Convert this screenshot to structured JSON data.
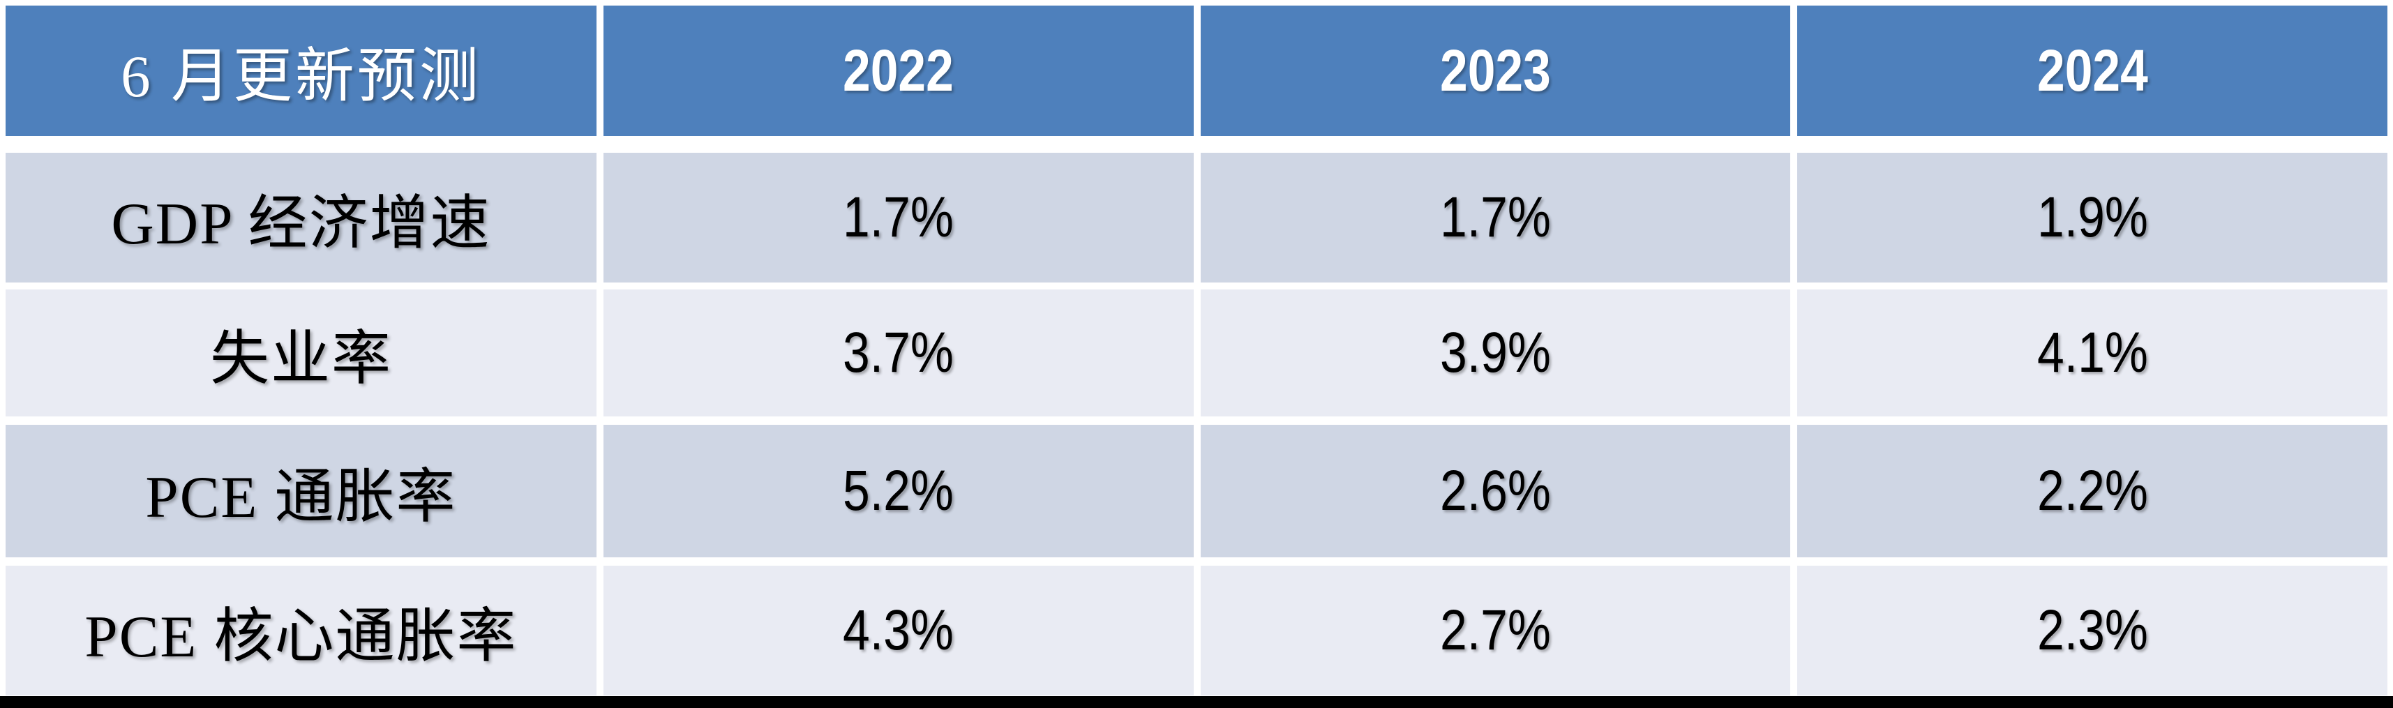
{
  "table": {
    "header": {
      "label": "6 月更新预测",
      "years": [
        "2022",
        "2023",
        "2024"
      ]
    },
    "rows": [
      {
        "label": "GDP 经济增速",
        "values": [
          "1.7%",
          "1.7%",
          "1.9%"
        ]
      },
      {
        "label": "失业率",
        "values": [
          "3.7%",
          "3.9%",
          "4.1%"
        ]
      },
      {
        "label": "PCE 通胀率",
        "values": [
          "5.2%",
          "2.6%",
          "2.2%"
        ]
      },
      {
        "label": "PCE 核心通胀率",
        "values": [
          "4.3%",
          "2.7%",
          "2.3%"
        ]
      }
    ]
  },
  "chart_data": {
    "type": "table",
    "title": "6 月更新预测",
    "columns": [
      "6 月更新预测",
      "2022",
      "2023",
      "2024"
    ],
    "rows": [
      [
        "GDP 经济增速",
        "1.7%",
        "1.7%",
        "1.9%"
      ],
      [
        "失业率",
        "3.7%",
        "3.9%",
        "4.1%"
      ],
      [
        "PCE 通胀率",
        "5.2%",
        "2.6%",
        "2.2%"
      ],
      [
        "PCE 核心通胀率",
        "4.3%",
        "2.7%",
        "2.3%"
      ]
    ],
    "series": [
      {
        "name": "GDP 经济增速",
        "values": [
          1.7,
          1.7,
          1.9
        ]
      },
      {
        "name": "失业率",
        "values": [
          3.7,
          3.9,
          4.1
        ]
      },
      {
        "name": "PCE 通胀率",
        "values": [
          5.2,
          2.6,
          2.2
        ]
      },
      {
        "name": "PCE 核心通胀率",
        "values": [
          4.3,
          2.7,
          2.3
        ]
      }
    ],
    "categories": [
      "2022",
      "2023",
      "2024"
    ],
    "unit": "%"
  },
  "colors": {
    "page_bg": "#FFFFFF",
    "header_bg": "#4E80BC",
    "band_dark": "#CFD6E4",
    "band_light": "#E9EBF3",
    "header_text": "#FFFFFF",
    "body_text": "#000000",
    "bottom_bar": "#000000"
  }
}
